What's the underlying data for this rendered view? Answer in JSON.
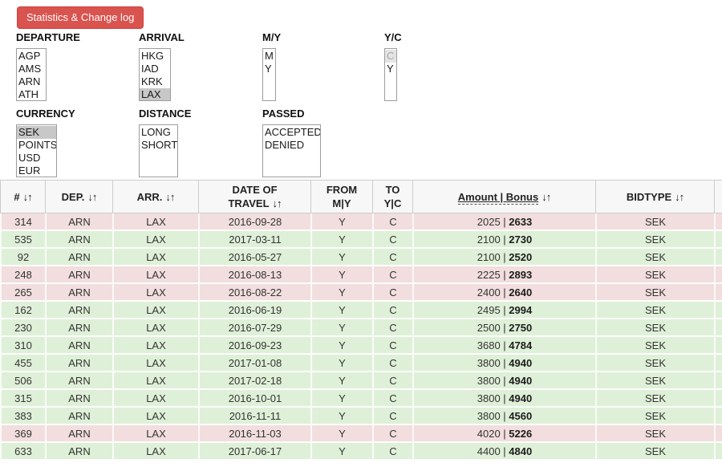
{
  "toolbar": {
    "stats_button_label": "Statistics & Change log"
  },
  "colors": {
    "button_bg": "#d9534f",
    "button_border": "#d43f3a",
    "row_accepted_bg": "#dff0d8",
    "row_denied_bg": "#f2dede",
    "selected_option_bg": "#c8c8c8",
    "disabled_option_bg": "#e4e4e4",
    "header_bg": "#f7f7f7"
  },
  "filters": [
    {
      "id": "departure",
      "label": "DEPARTURE",
      "options": [
        {
          "text": "AGP"
        },
        {
          "text": "AMS"
        },
        {
          "text": "ARN"
        },
        {
          "text": "ATH"
        }
      ]
    },
    {
      "id": "arrival",
      "label": "ARRIVAL",
      "options": [
        {
          "text": "HKG"
        },
        {
          "text": "IAD"
        },
        {
          "text": "KRK"
        },
        {
          "text": "LAX",
          "selected": true
        }
      ]
    },
    {
      "id": "my",
      "label": "M/Y",
      "options": [
        {
          "text": "M"
        },
        {
          "text": "Y"
        }
      ]
    },
    {
      "id": "yc",
      "label": "Y/C",
      "options": [
        {
          "text": "C",
          "disabled": true
        },
        {
          "text": "Y"
        }
      ]
    },
    {
      "id": "currency",
      "label": "CURRENCY",
      "options": [
        {
          "text": "SEK",
          "selected": true
        },
        {
          "text": "POINTS"
        },
        {
          "text": "USD"
        },
        {
          "text": "EUR"
        }
      ]
    },
    {
      "id": "distance",
      "label": "DISTANCE",
      "options": [
        {
          "text": "LONG"
        },
        {
          "text": "SHORT"
        }
      ]
    },
    {
      "id": "passed",
      "label": "PASSED",
      "options": [
        {
          "text": "ACCEPTED"
        },
        {
          "text": "DENIED"
        }
      ]
    }
  ],
  "table": {
    "sort_icon": "↓↑",
    "columns": [
      {
        "id": "num",
        "line1": "#",
        "sortable": true
      },
      {
        "id": "dep",
        "line1": "DEP.",
        "sortable": true
      },
      {
        "id": "arr",
        "line1": "ARR.",
        "sortable": true
      },
      {
        "id": "date",
        "line1": "DATE OF",
        "line2": "TRAVEL",
        "sortable": true,
        "sort_on_line2": true
      },
      {
        "id": "from",
        "line1": "FROM",
        "line2": "M|Y",
        "sortable": false
      },
      {
        "id": "to",
        "line1": "TO",
        "line2": "Y|C",
        "sortable": false
      },
      {
        "id": "amount",
        "line1": "Amount | Bonus",
        "sortable": true,
        "tooltip_underline": true
      },
      {
        "id": "bidtype",
        "line1": "BIDTYPE",
        "sortable": true
      },
      {
        "id": "extra",
        "line1": "",
        "sortable": false
      }
    ],
    "amount_separator": " | ",
    "rows": [
      {
        "num": "314",
        "dep": "ARN",
        "arr": "LAX",
        "date": "2016-09-28",
        "from": "Y",
        "to": "C",
        "amount": "2025",
        "bonus": "2633",
        "bidtype": "SEK",
        "status": "denied"
      },
      {
        "num": "535",
        "dep": "ARN",
        "arr": "LAX",
        "date": "2017-03-11",
        "from": "Y",
        "to": "C",
        "amount": "2100",
        "bonus": "2730",
        "bidtype": "SEK",
        "status": "accepted"
      },
      {
        "num": "92",
        "dep": "ARN",
        "arr": "LAX",
        "date": "2016-05-27",
        "from": "Y",
        "to": "C",
        "amount": "2100",
        "bonus": "2520",
        "bidtype": "SEK",
        "status": "accepted"
      },
      {
        "num": "248",
        "dep": "ARN",
        "arr": "LAX",
        "date": "2016-08-13",
        "from": "Y",
        "to": "C",
        "amount": "2225",
        "bonus": "2893",
        "bidtype": "SEK",
        "status": "denied"
      },
      {
        "num": "265",
        "dep": "ARN",
        "arr": "LAX",
        "date": "2016-08-22",
        "from": "Y",
        "to": "C",
        "amount": "2400",
        "bonus": "2640",
        "bidtype": "SEK",
        "status": "denied"
      },
      {
        "num": "162",
        "dep": "ARN",
        "arr": "LAX",
        "date": "2016-06-19",
        "from": "Y",
        "to": "C",
        "amount": "2495",
        "bonus": "2994",
        "bidtype": "SEK",
        "status": "accepted"
      },
      {
        "num": "230",
        "dep": "ARN",
        "arr": "LAX",
        "date": "2016-07-29",
        "from": "Y",
        "to": "C",
        "amount": "2500",
        "bonus": "2750",
        "bidtype": "SEK",
        "status": "accepted"
      },
      {
        "num": "310",
        "dep": "ARN",
        "arr": "LAX",
        "date": "2016-09-23",
        "from": "Y",
        "to": "C",
        "amount": "3680",
        "bonus": "4784",
        "bidtype": "SEK",
        "status": "accepted"
      },
      {
        "num": "455",
        "dep": "ARN",
        "arr": "LAX",
        "date": "2017-01-08",
        "from": "Y",
        "to": "C",
        "amount": "3800",
        "bonus": "4940",
        "bidtype": "SEK",
        "status": "accepted"
      },
      {
        "num": "506",
        "dep": "ARN",
        "arr": "LAX",
        "date": "2017-02-18",
        "from": "Y",
        "to": "C",
        "amount": "3800",
        "bonus": "4940",
        "bidtype": "SEK",
        "status": "accepted"
      },
      {
        "num": "315",
        "dep": "ARN",
        "arr": "LAX",
        "date": "2016-10-01",
        "from": "Y",
        "to": "C",
        "amount": "3800",
        "bonus": "4940",
        "bidtype": "SEK",
        "status": "accepted"
      },
      {
        "num": "383",
        "dep": "ARN",
        "arr": "LAX",
        "date": "2016-11-11",
        "from": "Y",
        "to": "C",
        "amount": "3800",
        "bonus": "4560",
        "bidtype": "SEK",
        "status": "accepted"
      },
      {
        "num": "369",
        "dep": "ARN",
        "arr": "LAX",
        "date": "2016-11-03",
        "from": "Y",
        "to": "C",
        "amount": "4020",
        "bonus": "5226",
        "bidtype": "SEK",
        "status": "denied"
      },
      {
        "num": "633",
        "dep": "ARN",
        "arr": "LAX",
        "date": "2017-06-17",
        "from": "Y",
        "to": "C",
        "amount": "4400",
        "bonus": "4840",
        "bidtype": "SEK",
        "status": "accepted"
      }
    ]
  }
}
